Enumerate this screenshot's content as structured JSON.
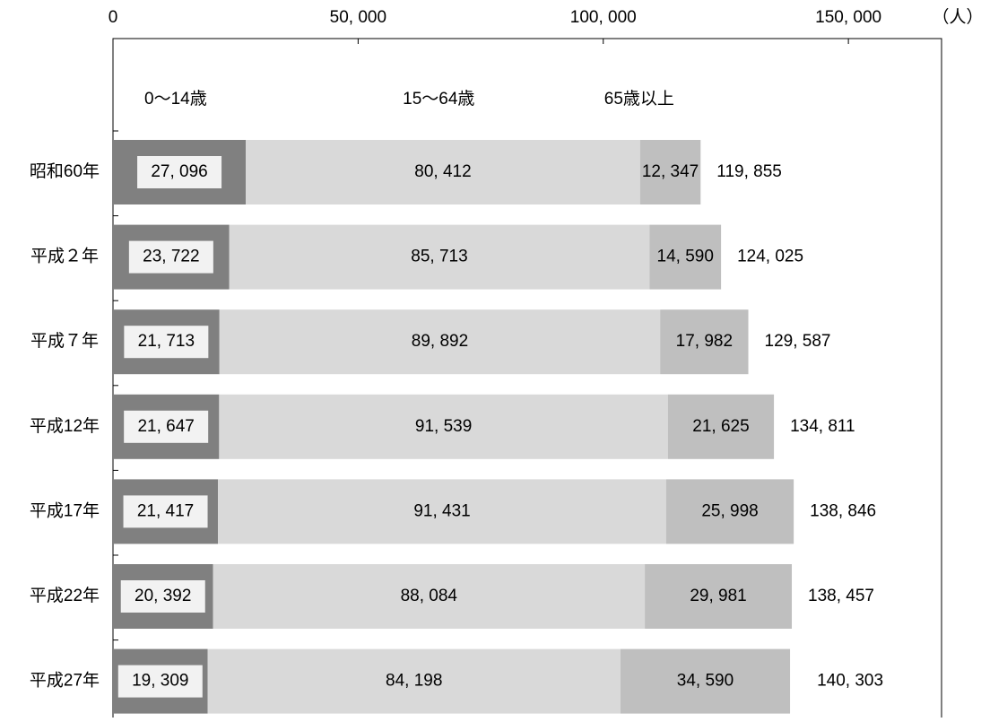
{
  "chart_data": {
    "type": "stacked-bar-horizontal",
    "unit_label": "（人）",
    "categories": [
      "昭和60年",
      "平成２年",
      "平成７年",
      "平成12年",
      "平成17年",
      "平成22年",
      "平成27年"
    ],
    "series": [
      {
        "name": "0～14歳",
        "color": "#808080",
        "values": [
          27096,
          23722,
          21713,
          21647,
          21417,
          20392,
          19309
        ],
        "value_labels": [
          "27, 096",
          "23, 722",
          "21, 713",
          "21, 647",
          "21, 417",
          "20, 392",
          "19, 309"
        ]
      },
      {
        "name": "15～64歳",
        "color": "#d9d9d9",
        "values": [
          80412,
          85713,
          89892,
          91539,
          91431,
          88084,
          84198
        ],
        "value_labels": [
          "80, 412",
          "85, 713",
          "89, 892",
          "91, 539",
          "91, 431",
          "88, 084",
          "84, 198"
        ]
      },
      {
        "name": "65歳以上",
        "color": "#bfbfbf",
        "values": [
          12347,
          14590,
          17982,
          21625,
          25998,
          29981,
          34590
        ],
        "value_labels": [
          "12, 347",
          "14, 590",
          "17, 982",
          "21, 625",
          "25, 998",
          "29, 981",
          "34, 590"
        ]
      }
    ],
    "totals": {
      "values": [
        119855,
        124025,
        129587,
        134811,
        138846,
        138457,
        140303
      ],
      "value_labels": [
        "119, 855",
        "124, 025",
        "129, 587",
        "134, 811",
        "138, 846",
        "138, 457",
        "140, 303"
      ]
    },
    "xlim": [
      0,
      169000
    ],
    "xticks": [
      0,
      {
        "value": 50000,
        "label": "50, 000"
      },
      {
        "value": 100000,
        "label": "100, 000"
      },
      {
        "value": 150000,
        "label": "150, 000"
      }
    ]
  }
}
